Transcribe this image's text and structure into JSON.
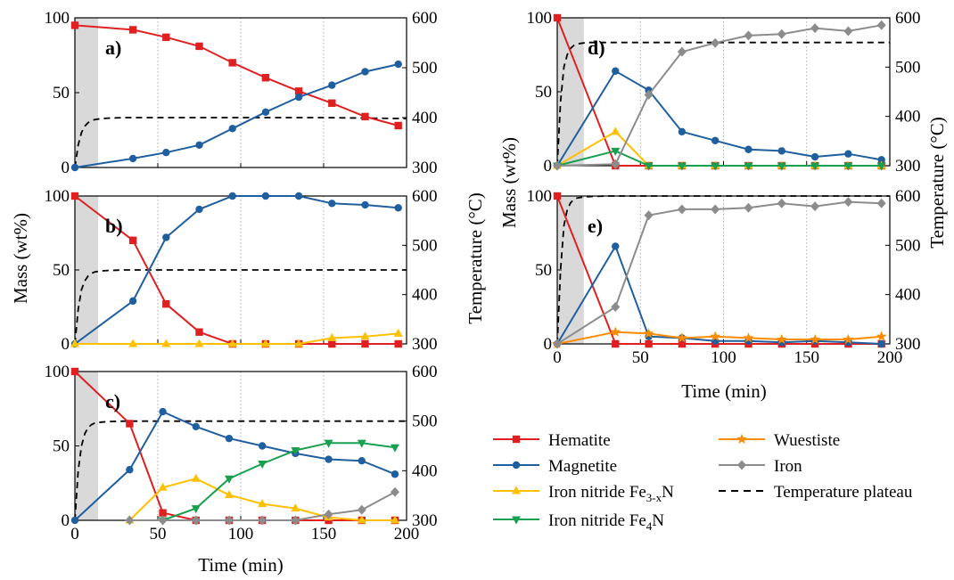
{
  "figure": {
    "ylabel": "Mass (wt%)",
    "y2label": "Temperature (°C)",
    "xlabel": "Time (min)"
  },
  "colors": {
    "hematite": "#e02020",
    "magnetite": "#1f5fa0",
    "fe3xn": "#ffc000",
    "fe4n": "#18a050",
    "wuestite": "#ff8c00",
    "iron": "#8c8c8c",
    "plateau": "#000000",
    "shade": "#d9d9d9"
  },
  "legend": [
    {
      "key": "hematite",
      "label": "Hematite",
      "sub": "",
      "suffix": "",
      "marker": "square"
    },
    {
      "key": "magnetite",
      "label": "Magnetite",
      "sub": "",
      "suffix": "",
      "marker": "circle"
    },
    {
      "key": "fe3xn",
      "label": "Iron nitride Fe",
      "sub": "3-x",
      "suffix": "N",
      "marker": "triangle-up"
    },
    {
      "key": "fe4n",
      "label": "Iron nitride Fe",
      "sub": "4",
      "suffix": "N",
      "marker": "triangle-down"
    },
    {
      "key": "wuestite",
      "label": "Wuestiste",
      "sub": "",
      "suffix": "",
      "marker": "star"
    },
    {
      "key": "iron",
      "label": "Iron",
      "sub": "",
      "suffix": "",
      "marker": "diamond"
    },
    {
      "key": "plateau",
      "label": "Temperature plateau",
      "sub": "",
      "suffix": "",
      "marker": "dash"
    }
  ],
  "chart_data": [
    {
      "panel": "a)",
      "type": "line",
      "xlim": [
        0,
        200
      ],
      "ylim": [
        0,
        100
      ],
      "y2lim": [
        300,
        600
      ],
      "xticks": [
        0,
        50,
        100,
        150,
        200
      ],
      "yticks": [
        0,
        50,
        100
      ],
      "y2ticks": [
        300,
        400,
        500,
        600
      ],
      "shaded_x": [
        0,
        14
      ],
      "temperature_plateau": {
        "x": [
          0,
          2,
          4,
          6,
          8,
          10,
          12,
          16,
          20,
          30,
          50,
          100,
          150,
          200
        ],
        "y": [
          300,
          345,
          370,
          383,
          390,
          394,
          396,
          398,
          399,
          400,
          400,
          400,
          400,
          398
        ]
      },
      "series": [
        {
          "key": "hematite",
          "name": "Hematite",
          "x": [
            0,
            35,
            55,
            75,
            95,
            115,
            135,
            155,
            175,
            195
          ],
          "y": [
            95,
            92,
            87,
            81,
            70,
            60,
            51,
            43,
            34,
            28
          ]
        },
        {
          "key": "magnetite",
          "name": "Magnetite",
          "x": [
            0,
            35,
            55,
            75,
            95,
            115,
            135,
            155,
            175,
            195
          ],
          "y": [
            0,
            6,
            10,
            15,
            26,
            37,
            47,
            55,
            64,
            69
          ]
        }
      ]
    },
    {
      "panel": "b)",
      "type": "line",
      "xlim": [
        0,
        200
      ],
      "ylim": [
        0,
        100
      ],
      "y2lim": [
        300,
        600
      ],
      "xticks": [
        0,
        50,
        100,
        150,
        200
      ],
      "yticks": [
        0,
        50,
        100
      ],
      "y2ticks": [
        300,
        400,
        500,
        600
      ],
      "shaded_x": [
        0,
        14
      ],
      "temperature_plateau": {
        "x": [
          0,
          2,
          4,
          6,
          8,
          10,
          12,
          16,
          20,
          30,
          50,
          100,
          150,
          200
        ],
        "y": [
          300,
          370,
          410,
          428,
          438,
          443,
          446,
          448,
          449,
          450,
          450,
          450,
          450,
          450
        ]
      },
      "series": [
        {
          "key": "hematite",
          "name": "Hematite",
          "x": [
            0,
            35,
            55,
            75,
            95,
            115,
            135,
            155,
            175,
            195
          ],
          "y": [
            100,
            70,
            27,
            8,
            0,
            0,
            0,
            0,
            0,
            0
          ]
        },
        {
          "key": "magnetite",
          "name": "Magnetite",
          "x": [
            0,
            35,
            55,
            75,
            95,
            115,
            135,
            155,
            175,
            195
          ],
          "y": [
            0,
            29,
            72,
            91,
            100,
            100,
            100,
            95,
            94,
            92
          ]
        },
        {
          "key": "fe3xn",
          "name": "Iron nitride Fe3-xN",
          "x": [
            0,
            35,
            55,
            75,
            95,
            115,
            135,
            155,
            175,
            195
          ],
          "y": [
            0,
            0,
            0,
            0,
            0,
            0,
            0,
            4,
            5,
            7
          ]
        }
      ]
    },
    {
      "panel": "c)",
      "type": "line",
      "xlim": [
        0,
        200
      ],
      "ylim": [
        0,
        100
      ],
      "y2lim": [
        300,
        600
      ],
      "xticks": [
        0,
        50,
        100,
        150,
        200
      ],
      "yticks": [
        0,
        50,
        100
      ],
      "y2ticks": [
        300,
        400,
        500,
        600
      ],
      "shaded_x": [
        0,
        14
      ],
      "temperature_plateau": {
        "x": [
          0,
          2,
          4,
          6,
          8,
          10,
          12,
          16,
          20,
          30,
          50,
          100,
          150,
          200
        ],
        "y": [
          300,
          400,
          450,
          475,
          487,
          493,
          496,
          498,
          499,
          500,
          500,
          500,
          500,
          500
        ]
      },
      "series": [
        {
          "key": "hematite",
          "name": "Hematite",
          "x": [
            0,
            33,
            53,
            73,
            93,
            113,
            133,
            153,
            173,
            193
          ],
          "y": [
            100,
            65,
            5,
            0,
            0,
            0,
            0,
            0,
            0,
            0
          ]
        },
        {
          "key": "magnetite",
          "name": "Magnetite",
          "x": [
            0,
            33,
            53,
            73,
            93,
            113,
            133,
            153,
            173,
            193
          ],
          "y": [
            0,
            34,
            73,
            63,
            55,
            50,
            45,
            41,
            40,
            31
          ]
        },
        {
          "key": "fe3xn",
          "name": "Iron nitride Fe3-xN",
          "x": [
            33,
            53,
            73,
            93,
            113,
            133,
            153,
            173,
            193
          ],
          "y": [
            0,
            22,
            28,
            17,
            11,
            8,
            2,
            0,
            0
          ]
        },
        {
          "key": "fe4n",
          "name": "Iron nitride Fe4N",
          "x": [
            53,
            73,
            93,
            113,
            133,
            153,
            173,
            193
          ],
          "y": [
            0,
            8,
            28,
            38,
            47,
            52,
            52,
            49
          ]
        },
        {
          "key": "iron",
          "name": "Iron",
          "x": [
            33,
            53,
            73,
            93,
            113,
            133,
            153,
            173,
            193
          ],
          "y": [
            0,
            0,
            0,
            0,
            0,
            0,
            4,
            7,
            19
          ]
        }
      ]
    },
    {
      "panel": "d)",
      "type": "line",
      "xlim": [
        0,
        200
      ],
      "ylim": [
        0,
        100
      ],
      "y2lim": [
        300,
        600
      ],
      "xticks": [
        0,
        50,
        100,
        150,
        200
      ],
      "yticks": [
        0,
        50,
        100
      ],
      "y2ticks": [
        300,
        400,
        500,
        600
      ],
      "shaded_x": [
        0,
        16
      ],
      "temperature_plateau": {
        "x": [
          0,
          2,
          4,
          6,
          8,
          10,
          12,
          16,
          20,
          30,
          50,
          100,
          150,
          200
        ],
        "y": [
          300,
          430,
          500,
          525,
          538,
          544,
          547,
          549,
          550,
          550,
          550,
          550,
          550,
          550
        ]
      },
      "series": [
        {
          "key": "hematite",
          "name": "Hematite",
          "x": [
            0,
            35,
            55,
            75,
            95,
            115,
            135,
            155,
            175,
            195
          ],
          "y": [
            100,
            0,
            0,
            0,
            0,
            0,
            0,
            0,
            0,
            0
          ]
        },
        {
          "key": "magnetite",
          "name": "Magnetite",
          "x": [
            0,
            35,
            55,
            75,
            95,
            115,
            135,
            155,
            175,
            195
          ],
          "y": [
            0,
            64,
            51,
            23,
            17,
            11,
            10,
            6,
            8,
            4
          ]
        },
        {
          "key": "fe3xn",
          "name": "Iron nitride Fe3-xN",
          "x": [
            0,
            35,
            55,
            75,
            95,
            115,
            135,
            155,
            175,
            195
          ],
          "y": [
            0,
            23,
            0,
            0,
            0,
            0,
            0,
            0,
            0,
            0
          ]
        },
        {
          "key": "fe4n",
          "name": "Iron nitride Fe4N",
          "x": [
            0,
            35,
            55,
            75,
            95,
            115,
            135,
            155,
            175,
            195
          ],
          "y": [
            0,
            10,
            0,
            0,
            0,
            0,
            0,
            0,
            0,
            0
          ]
        },
        {
          "key": "iron",
          "name": "Iron",
          "x": [
            0,
            35,
            55,
            75,
            95,
            115,
            135,
            155,
            175,
            195
          ],
          "y": [
            0,
            1,
            48,
            77,
            83,
            88,
            89,
            93,
            91,
            95
          ]
        }
      ]
    },
    {
      "panel": "e)",
      "type": "line",
      "xlim": [
        0,
        200
      ],
      "ylim": [
        0,
        100
      ],
      "y2lim": [
        300,
        600
      ],
      "xticks": [
        0,
        50,
        100,
        150,
        200
      ],
      "yticks": [
        0,
        50,
        100
      ],
      "y2ticks": [
        300,
        400,
        500,
        600
      ],
      "shaded_x": [
        0,
        16
      ],
      "temperature_plateau": {
        "x": [
          0,
          2,
          4,
          6,
          8,
          10,
          12,
          16,
          20,
          30,
          50,
          100,
          150,
          200
        ],
        "y": [
          300,
          450,
          540,
          572,
          586,
          593,
          596,
          598,
          599,
          600,
          600,
          600,
          600,
          600
        ]
      },
      "series": [
        {
          "key": "hematite",
          "name": "Hematite",
          "x": [
            0,
            35,
            55,
            75,
            95,
            115,
            135,
            155,
            175,
            195
          ],
          "y": [
            100,
            0,
            0,
            0,
            0,
            0,
            0,
            0,
            0,
            0
          ]
        },
        {
          "key": "magnetite",
          "name": "Magnetite",
          "x": [
            0,
            35,
            55,
            75,
            95,
            115,
            135,
            155,
            175,
            195
          ],
          "y": [
            0,
            66,
            5,
            4,
            2,
            2,
            1,
            2,
            1,
            0
          ]
        },
        {
          "key": "wuestite",
          "name": "Wuestiste",
          "x": [
            0,
            35,
            55,
            75,
            95,
            115,
            135,
            155,
            175,
            195
          ],
          "y": [
            0,
            8,
            7,
            4,
            5,
            4,
            3,
            3,
            3,
            5
          ]
        },
        {
          "key": "iron",
          "name": "Iron",
          "x": [
            0,
            35,
            55,
            75,
            95,
            115,
            135,
            155,
            175,
            195
          ],
          "y": [
            0,
            25,
            87,
            91,
            91,
            92,
            95,
            93,
            96,
            95
          ]
        }
      ]
    }
  ]
}
